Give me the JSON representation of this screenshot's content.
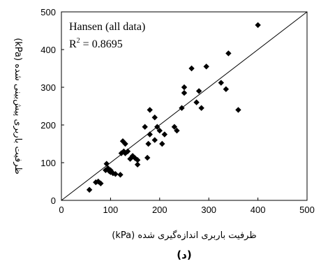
{
  "chart_data": {
    "type": "scatter",
    "x": [
      57,
      70,
      75,
      80,
      90,
      92,
      95,
      97,
      100,
      100,
      105,
      110,
      120,
      122,
      125,
      127,
      130,
      130,
      135,
      140,
      145,
      150,
      155,
      155,
      170,
      175,
      177,
      180,
      180,
      190,
      190,
      195,
      200,
      205,
      210,
      230,
      235,
      245,
      250,
      250,
      265,
      275,
      280,
      285,
      295,
      325,
      335,
      340,
      360,
      400
    ],
    "y": [
      28,
      48,
      50,
      45,
      80,
      97,
      85,
      78,
      75,
      80,
      72,
      70,
      68,
      125,
      157,
      130,
      150,
      125,
      130,
      110,
      118,
      112,
      107,
      95,
      195,
      113,
      150,
      175,
      240,
      160,
      220,
      195,
      185,
      150,
      175,
      195,
      185,
      245,
      285,
      300,
      350,
      260,
      290,
      245,
      355,
      312,
      295,
      390,
      240,
      465
    ],
    "xlim": [
      0,
      500
    ],
    "ylim": [
      0,
      500
    ],
    "xticks": [
      0,
      100,
      200,
      300,
      400,
      500
    ],
    "yticks": [
      0,
      100,
      200,
      300,
      400,
      500
    ],
    "xtick_labels": [
      "0",
      "100",
      "200",
      "300",
      "400",
      "500"
    ],
    "ytick_labels": [
      "0",
      "100",
      "200",
      "300",
      "400",
      "500"
    ],
    "xlabel": "ظرفیت باربری اندازه‌گیری شده (kPa)",
    "ylabel": "ظرفیت باربری پیش‌بینی شده (kPa)",
    "legend_line1": "Hansen (all data)",
    "r2_label": "R",
    "r2_sup": "2",
    "r2_value": " = 0.8695",
    "panel_label": "(د)",
    "reference_line": "y = x",
    "marker": "diamond",
    "marker_color": "#000000",
    "grid": false
  }
}
